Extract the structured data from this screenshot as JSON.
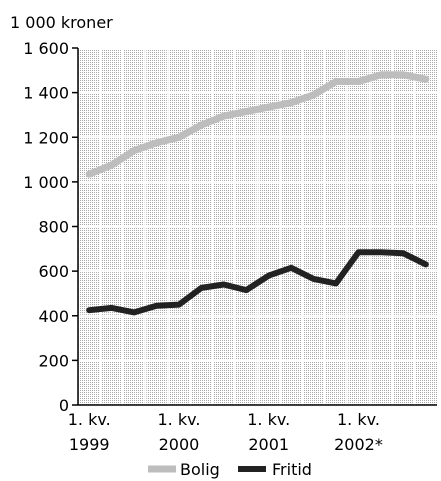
{
  "chart_data": {
    "type": "line",
    "unit_label": "1 000 kroner",
    "x": [
      "1. kv. 1999",
      "2. kv. 1999",
      "3. kv. 1999",
      "4. kv. 1999",
      "1. kv. 2000",
      "2. kv. 2000",
      "3. kv. 2000",
      "4. kv. 2000",
      "1. kv. 2001",
      "2. kv. 2001",
      "3. kv. 2001",
      "4. kv. 2001",
      "1. kv. 2002",
      "2. kv. 2002",
      "3. kv. 2002",
      "4. kv. 2002"
    ],
    "x_tick_labels": [
      {
        "line1": "1. kv.",
        "line2": "1999"
      },
      {
        "line1": "1. kv.",
        "line2": "2000"
      },
      {
        "line1": "1. kv.",
        "line2": "2001"
      },
      {
        "line1": "1. kv.",
        "line2": "2002*"
      }
    ],
    "y_ticks": [
      0,
      200,
      400,
      600,
      800,
      1000,
      1200,
      1400,
      1600
    ],
    "y_tick_labels": [
      "0",
      "200",
      "400",
      "600",
      "800",
      "1 000",
      "1 200",
      "1 400",
      "1 600"
    ],
    "ylim": [
      0,
      1600
    ],
    "grid": true,
    "legend_position": "bottom",
    "series": [
      {
        "name": "Bolig",
        "color": "#bdbdbd",
        "values": [
          1035,
          1075,
          1140,
          1175,
          1200,
          1255,
          1295,
          1315,
          1335,
          1355,
          1390,
          1450,
          1450,
          1480,
          1480,
          1460
        ]
      },
      {
        "name": "Fritid",
        "color": "#222222",
        "values": [
          425,
          435,
          415,
          445,
          450,
          525,
          540,
          515,
          580,
          615,
          565,
          545,
          685,
          685,
          680,
          630
        ]
      }
    ]
  }
}
